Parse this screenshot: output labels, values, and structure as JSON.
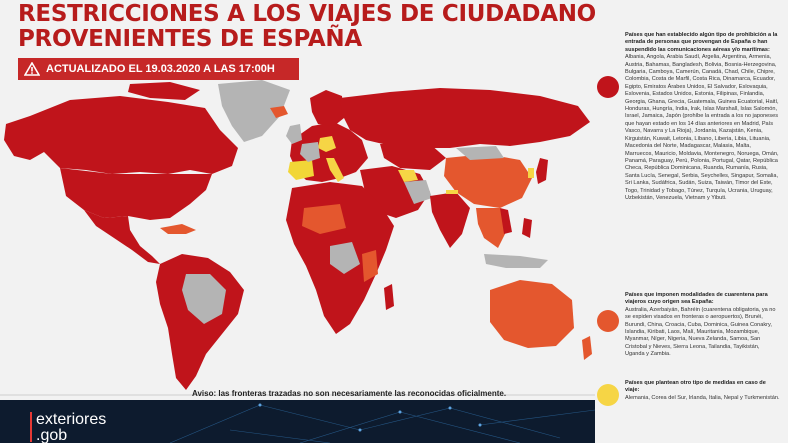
{
  "title": {
    "line1": "RESTRICCIONES A LOS VIAJES DE CIUDADANOS",
    "line2": "PROVENIENTES DE ESPAÑA"
  },
  "banner": {
    "text": "ACTUALIZADO EL 19.03.2020 A LAS 17:00H",
    "icon": "warning-icon"
  },
  "notice": "Aviso: las fronteras trazadas no son necesariamente las reconocidas oficialmente.",
  "logo": {
    "line1": "exteriores",
    "line2": ".gob"
  },
  "colors": {
    "prohibition": "#c0141b",
    "quarantine": "#e4572e",
    "other": "#f6d545",
    "no_data": "#b4b4b4",
    "spain": "#f2d637",
    "title": "#b71c1c"
  },
  "legend": [
    {
      "color_key": "prohibition",
      "heading": "Países que han establecido algún tipo de prohibición a la entrada de personas que provengan de España o han suspendido las comunicaciones aéreas y/o marítimas:",
      "body": "Albania, Angola, Arabia Saudí, Argelia, Argentina, Armenia, Austria, Bahamas, Bangladesh, Bolivia, Bosnia-Herzegovina, Bulgaria, Camboya, Camerún, Canadá, Chad, Chile, Chipre, Colombia, Costa de Marfil, Costa Rica, Dinamarca, Ecuador, Egipto, Emiratos Árabes Unidos, El Salvador, Eslovaquia, Eslovenia, Estados Unidos, Estonia, Filipinas, Finlandia, Georgia, Ghana, Grecia, Guatemala, Guinea Ecuatorial, Haití, Honduras, Hungría, India, Irak, Islas Marshall, Islas Salomón, Israel, Jamaica, Japón (prohíbe la entrada a los no japoneses que hayan estado en los 14 días anteriores en Madrid, País Vasco, Navarra y La Rioja), Jordania, Kazajstán, Kenia, Kirguistán, Kuwait, Letonia, Líbano, Liberia, Libia, Lituania, Macedonia del Norte, Madagascar, Malasia, Malta, Marruecos, Mauricio, Moldavia, Montenegro, Noruega, Omán, Panamá, Paraguay, Perú, Polonia, Portugal, Qatar, República Checa, República Dominicana, Ruanda, Rumanía, Rusia, Santa Lucía, Senegal, Serbia, Seychelles, Singapur, Somalia, Sri Lanka, Sudáfrica, Sudán, Suiza, Taiwán, Timor del Este, Togo, Trinidad y Tobago, Túnez, Turquía, Ucrania, Uruguay, Uzbekistán, Venezuela, Vietnam y Yibuti."
    },
    {
      "color_key": "quarantine",
      "heading": "Países que imponen modalidades de cuarentena para viajeros cuyo origen sea España:",
      "body": "Australia, Azerbaiyán, Bahréin (cuarentena obligatoria, ya no se expiden visados en fronteras o aeropuertos), Brunéi, Burundi, China, Croacia, Cuba, Dominica, Guinea Conakry, Islandia, Kiribati, Laos, Malí, Mauritania, Mozambique, Myanmar, Níger, Nigeria, Nueva Zelanda, Samoa, San Cristobal y Nieves, Sierra Leona, Tailandia, Tayikistán, Uganda y Zambia."
    },
    {
      "color_key": "other",
      "heading": "Países que plantean otro tipo de medidas en caso de viaje:",
      "body": "Alemania, Corea del Sur, Irlanda, Italia, Nepal y Turkmenistán."
    }
  ]
}
